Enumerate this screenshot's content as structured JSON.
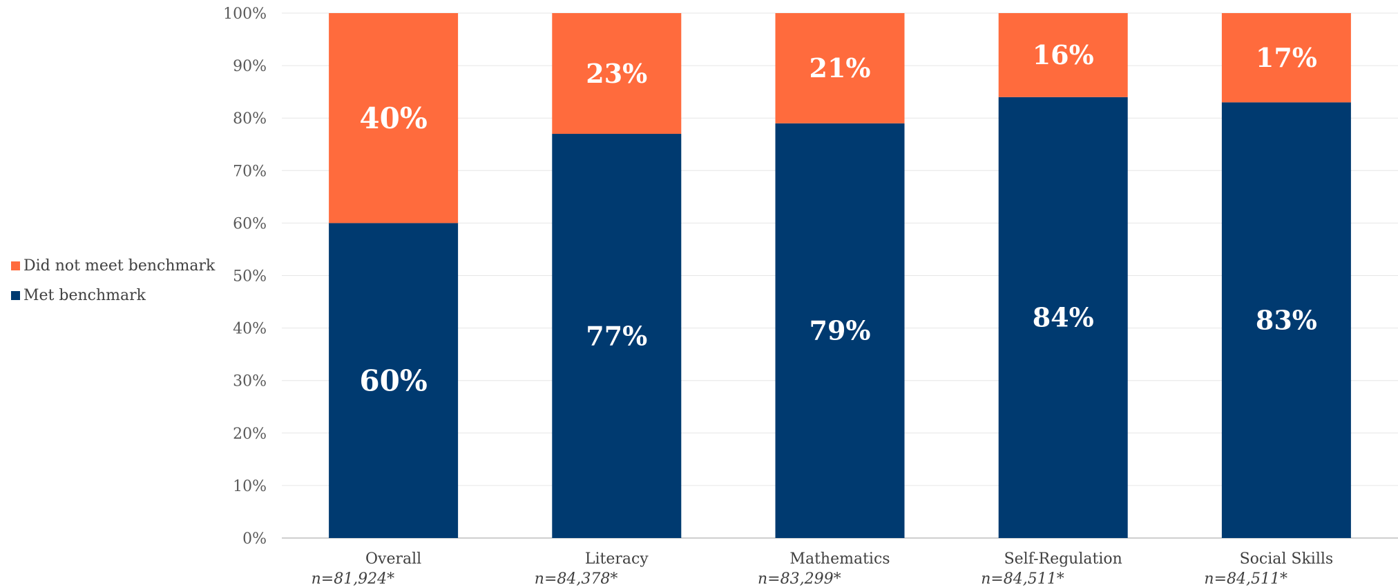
{
  "chart_data": {
    "type": "bar",
    "stacked": true,
    "categories": [
      "Overall",
      "Literacy",
      "Mathematics",
      "Self-Regulation",
      "Social Skills"
    ],
    "sample_sizes": [
      "n=81,924*",
      "n=84,378*",
      "n=83,299*",
      "n=84,511*",
      "n=84,511*"
    ],
    "series": [
      {
        "name": "Met benchmark",
        "color": "#003a70",
        "values": [
          60,
          77,
          79,
          84,
          83
        ],
        "labels": [
          "60%",
          "77%",
          "79%",
          "84%",
          "83%"
        ]
      },
      {
        "name": "Did not meet benchmark",
        "color": "#ff6b3d",
        "values": [
          40,
          23,
          21,
          16,
          17
        ],
        "labels": [
          "40%",
          "23%",
          "21%",
          "16%",
          "17%"
        ]
      }
    ],
    "ylim": [
      0,
      100
    ],
    "yticks": [
      "0%",
      "10%",
      "20%",
      "30%",
      "40%",
      "50%",
      "60%",
      "70%",
      "80%",
      "90%",
      "100%"
    ],
    "grid": true,
    "legend": {
      "position": "left",
      "entries": [
        "Did not meet benchmark",
        "Met benchmark"
      ]
    }
  }
}
